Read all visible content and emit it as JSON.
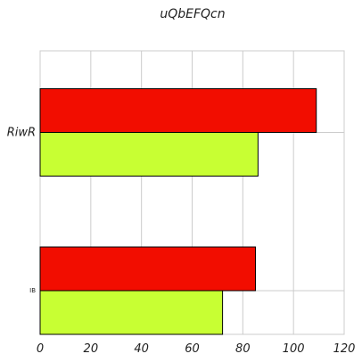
{
  "chart_data": {
    "type": "bar",
    "orientation": "horizontal",
    "title": "uQbEFQcn",
    "xlabel": "",
    "ylabel": "",
    "categories": [
      "RiwR",
      "IB"
    ],
    "series": [
      {
        "color": "#f20d00",
        "values": [
          109,
          85
        ]
      },
      {
        "color": "#c8ff33",
        "values": [
          86,
          72
        ]
      }
    ],
    "xlim": [
      0,
      120
    ],
    "xticks": [
      "0",
      "20",
      "40",
      "60",
      "80",
      "100",
      "120"
    ],
    "grid": true,
    "legend": "none"
  }
}
